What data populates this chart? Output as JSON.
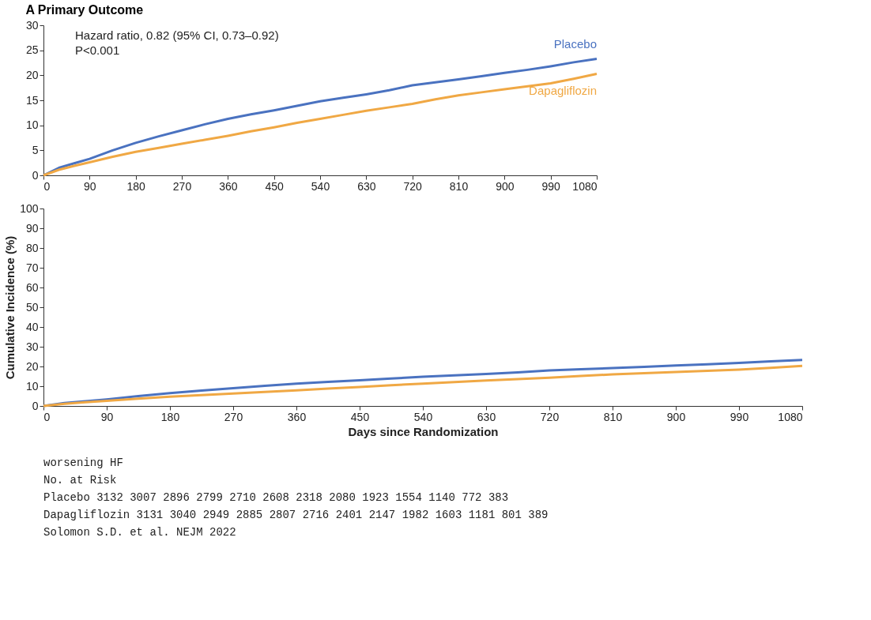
{
  "chart_data": [
    {
      "type": "line",
      "title": "A  Primary Outcome",
      "annotations": [
        "Hazard ratio, 0.82 (95% CI, 0.73–0.92)",
        "P<0.001"
      ],
      "x": [
        0,
        30,
        60,
        90,
        135,
        180,
        225,
        270,
        315,
        360,
        405,
        450,
        495,
        540,
        585,
        630,
        675,
        720,
        765,
        810,
        855,
        900,
        945,
        990,
        1035,
        1080
      ],
      "xlim": [
        0,
        1080
      ],
      "xticks": [
        0,
        90,
        180,
        270,
        360,
        450,
        540,
        630,
        720,
        810,
        900,
        990,
        1080
      ],
      "ylim": [
        0,
        30
      ],
      "yticks": [
        0,
        5,
        10,
        15,
        20,
        25,
        30
      ],
      "legend": false,
      "grid": false,
      "series": [
        {
          "name": "Placebo",
          "color": "#4a72c0",
          "values": [
            0,
            1.5,
            2.4,
            3.3,
            5.0,
            6.5,
            7.8,
            9.0,
            10.2,
            11.3,
            12.2,
            13.0,
            13.9,
            14.8,
            15.5,
            16.2,
            17.0,
            18.0,
            18.6,
            19.2,
            19.8,
            20.5,
            21.1,
            21.8,
            22.6,
            23.3
          ]
        },
        {
          "name": "Dapagliflozin",
          "color": "#f0a844",
          "values": [
            0,
            1.1,
            1.9,
            2.6,
            3.7,
            4.7,
            5.5,
            6.3,
            7.1,
            7.9,
            8.8,
            9.6,
            10.5,
            11.3,
            12.1,
            12.9,
            13.6,
            14.3,
            15.2,
            16.0,
            16.6,
            17.2,
            17.8,
            18.4,
            19.3,
            20.3
          ]
        }
      ]
    },
    {
      "type": "line",
      "xlabel": "Days since Randomization",
      "ylabel": "Cumulative Incidence (%)",
      "annotations": [
        "worsening HF",
        "No. at Risk",
        "Placebo        3132  3007  2896  2799  2710  2608  2318  2080  1923  1554  1140   772   383",
        "Dapagliflozin  3131  3040  2949  2885  2807  2716  2401  2147  1982  1603  1181   801   389",
        "Solomon S.D. et al. NEJM 2022"
      ],
      "x": [
        0,
        30,
        60,
        90,
        135,
        180,
        225,
        270,
        315,
        360,
        405,
        450,
        495,
        540,
        585,
        630,
        675,
        720,
        765,
        810,
        855,
        900,
        945,
        990,
        1035,
        1080
      ],
      "xlim": [
        0,
        1080
      ],
      "xticks": [
        0,
        90,
        180,
        270,
        360,
        450,
        540,
        630,
        720,
        810,
        900,
        990,
        1080
      ],
      "ylim": [
        0,
        100
      ],
      "yticks": [
        0,
        10,
        20,
        30,
        40,
        50,
        60,
        70,
        80,
        90,
        100
      ],
      "legend": false,
      "grid": false,
      "series": [
        {
          "color": "#4a72c0",
          "values": [
            0,
            1.5,
            2.4,
            3.3,
            5.0,
            6.5,
            7.8,
            9.0,
            10.2,
            11.3,
            12.2,
            13.0,
            13.9,
            14.8,
            15.5,
            16.2,
            17.0,
            18.0,
            18.6,
            19.2,
            19.8,
            20.5,
            21.1,
            21.8,
            22.6,
            23.3
          ]
        },
        {
          "color": "#f0a844",
          "values": [
            0,
            1.1,
            1.9,
            2.6,
            3.7,
            4.7,
            5.5,
            6.3,
            7.1,
            7.9,
            8.8,
            9.6,
            10.5,
            11.3,
            12.1,
            12.9,
            13.6,
            14.3,
            15.2,
            16.0,
            16.6,
            17.2,
            17.8,
            18.4,
            19.3,
            20.3
          ]
        }
      ]
    }
  ]
}
